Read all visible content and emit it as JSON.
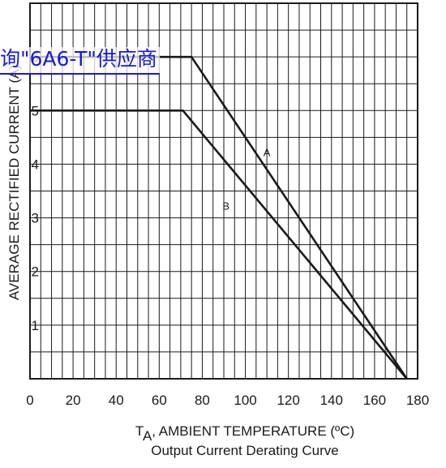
{
  "chart_data": {
    "type": "line",
    "xlabel_prefix": "T",
    "xlabel_sub": "A",
    "xlabel_rest": ", AMBIENT TEMPERATURE (ºC)",
    "ylabel": "AVERAGE RECTIFIED CURRENT (A)",
    "subtitle": "Output Current Derating Curve",
    "xlim": [
      0,
      180
    ],
    "ylim": [
      0,
      7
    ],
    "x_ticks": [
      0,
      20,
      40,
      60,
      80,
      100,
      120,
      140,
      160,
      180
    ],
    "y_ticks": [
      1,
      2,
      3,
      4,
      5,
      6
    ],
    "grid": true,
    "series": [
      {
        "name": "A",
        "x": [
          0,
          75,
          175
        ],
        "y": [
          6,
          6,
          0
        ]
      },
      {
        "name": "B",
        "x": [
          0,
          71,
          175
        ],
        "y": [
          5,
          5,
          0
        ]
      }
    ],
    "annotations": [
      {
        "text": "A",
        "x": 110,
        "y": 4.15
      },
      {
        "text": "B",
        "x": 91,
        "y": 3.15
      }
    ]
  },
  "overlay": {
    "link_text": "询\"6A6-T\"供应商",
    "color": "#1a1acc"
  }
}
